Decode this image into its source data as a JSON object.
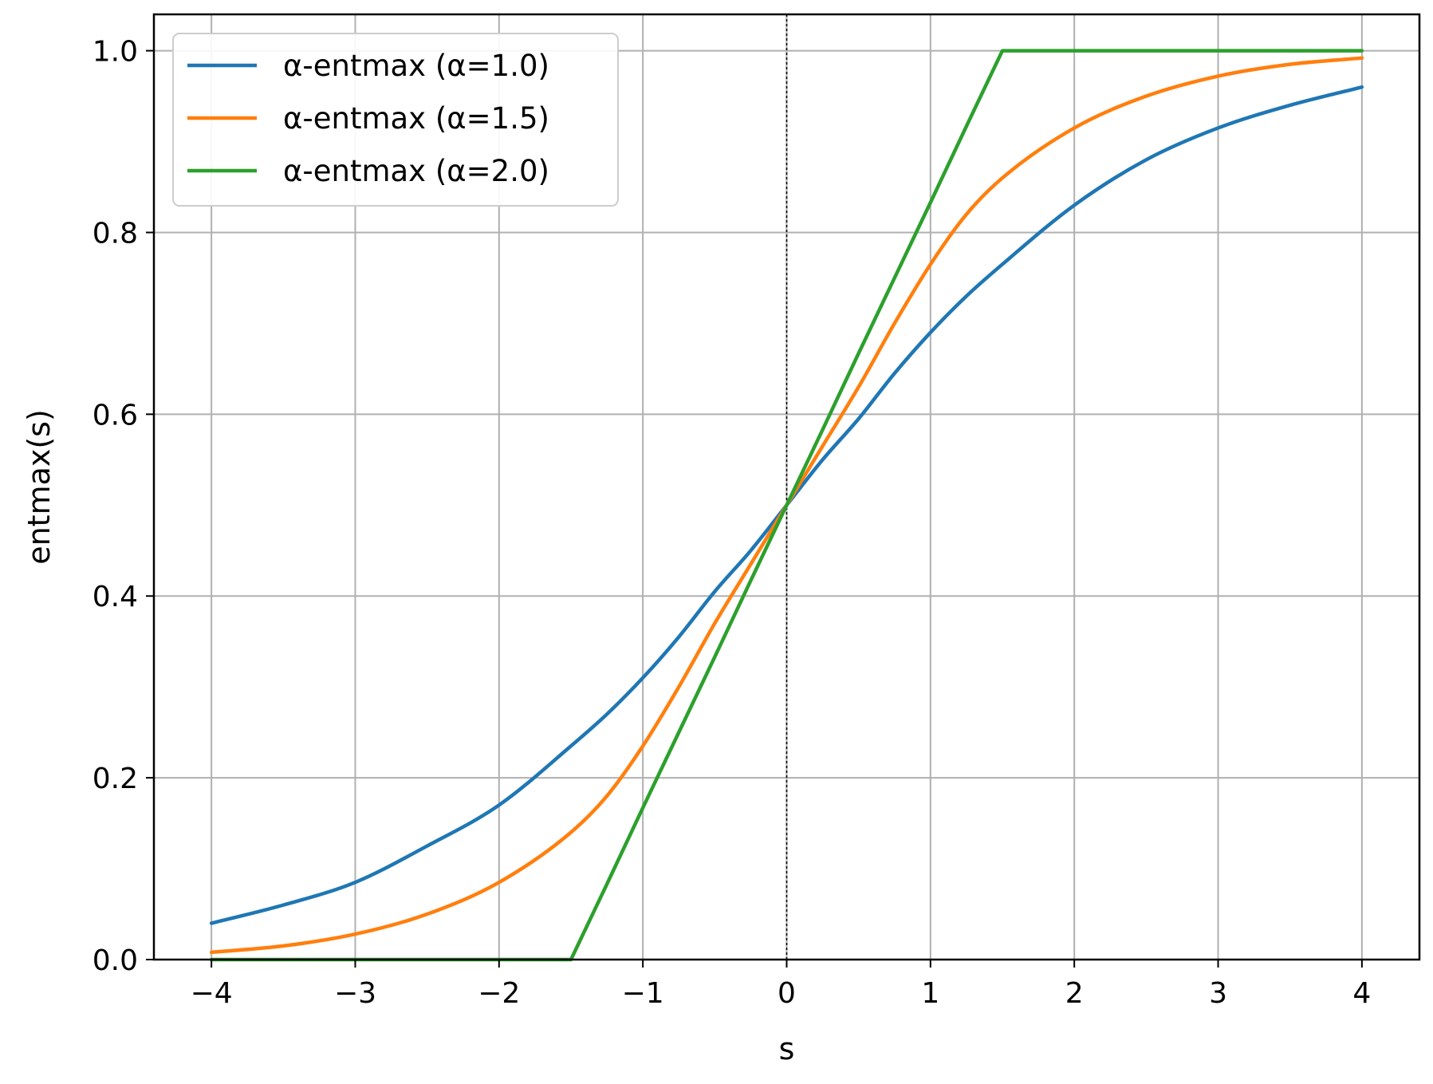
{
  "chart_data": {
    "type": "line",
    "xlabel": "s",
    "ylabel": "entmax(s)",
    "xlim": [
      -4.4,
      4.4
    ],
    "ylim": [
      0.0,
      1.04
    ],
    "xticks": [
      -4,
      -3,
      -2,
      -1,
      0,
      1,
      2,
      3,
      4
    ],
    "xtick_labels": [
      "−4",
      "−3",
      "−2",
      "−1",
      "0",
      "1",
      "2",
      "3",
      "4"
    ],
    "yticks": [
      0.0,
      0.2,
      0.4,
      0.6,
      0.8,
      1.0
    ],
    "ytick_labels": [
      "0.0",
      "0.2",
      "0.4",
      "0.6",
      "0.8",
      "1.0"
    ],
    "grid": true,
    "legend_position": "top-left",
    "vline": {
      "x": 0,
      "style": "dotted",
      "color": "#000000"
    },
    "x": [
      -4,
      -3.5,
      -3,
      -2.5,
      -2,
      -1.5,
      -1.25,
      -1,
      -0.75,
      -0.5,
      -0.25,
      0,
      0.25,
      0.5,
      0.75,
      1,
      1.25,
      1.5,
      2,
      2.5,
      3,
      3.5,
      4
    ],
    "series": [
      {
        "name": "α-entmax (α=1.0)",
        "color": "#1f77b4",
        "values": [
          0.04,
          0.06,
          0.085,
          0.125,
          0.17,
          0.235,
          0.27,
          0.31,
          0.355,
          0.405,
          0.45,
          0.5,
          0.55,
          0.595,
          0.645,
          0.69,
          0.73,
          0.765,
          0.83,
          0.88,
          0.915,
          0.94,
          0.96
        ]
      },
      {
        "name": "α-entmax (α=1.5)",
        "color": "#ff7f0e",
        "values": [
          0.008,
          0.015,
          0.028,
          0.05,
          0.085,
          0.14,
          0.18,
          0.235,
          0.3,
          0.37,
          0.435,
          0.5,
          0.565,
          0.63,
          0.7,
          0.765,
          0.82,
          0.86,
          0.915,
          0.95,
          0.972,
          0.985,
          0.992
        ]
      },
      {
        "name": "α-entmax (α=2.0)",
        "color": "#2ca02c",
        "values": [
          0,
          0,
          0,
          0,
          0,
          0,
          0.083,
          0.167,
          0.25,
          0.333,
          0.417,
          0.5,
          0.583,
          0.667,
          0.75,
          0.833,
          0.917,
          1.0,
          1.0,
          1.0,
          1.0,
          1.0,
          1.0
        ]
      }
    ]
  }
}
